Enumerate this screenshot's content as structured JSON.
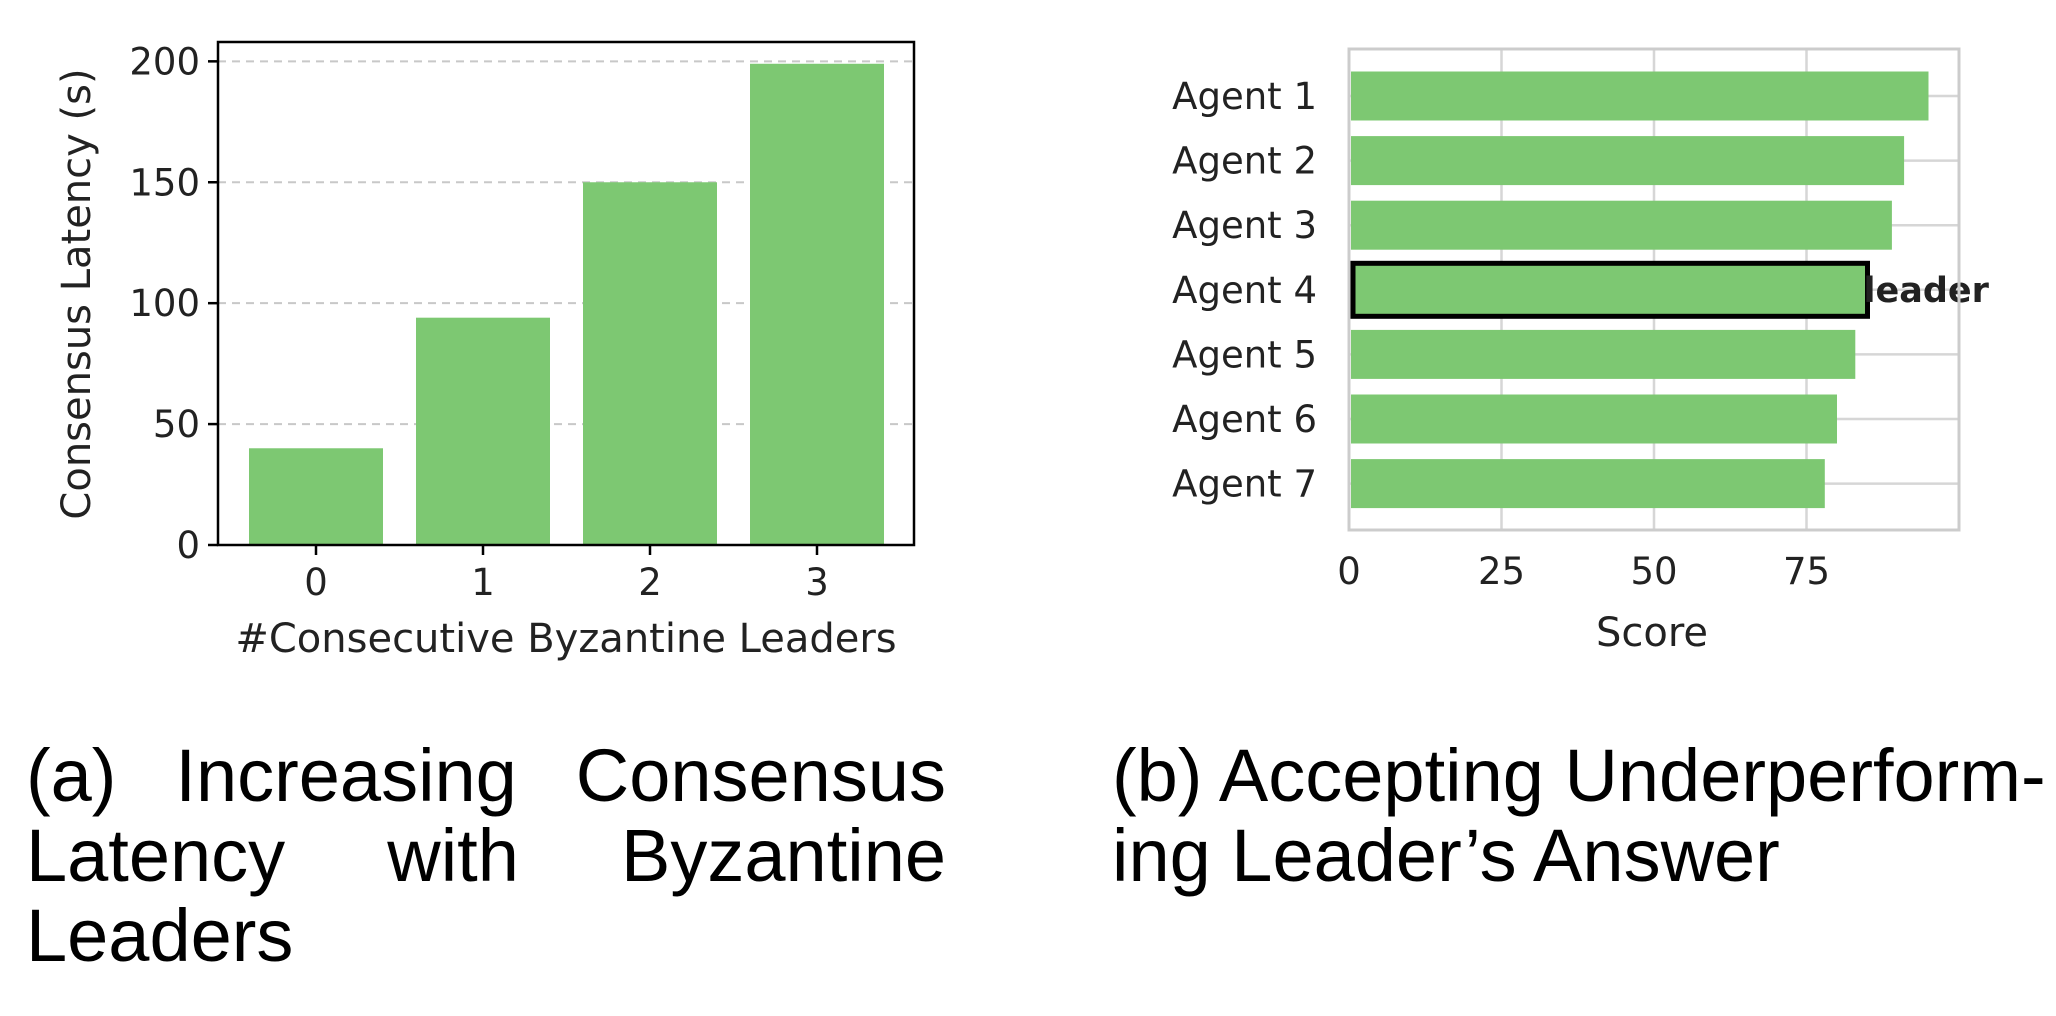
{
  "chart_data": [
    {
      "type": "bar",
      "categories": [
        "0",
        "1",
        "2",
        "3"
      ],
      "values": [
        40,
        94,
        150,
        199
      ],
      "xlabel": "#Consecutive Byzantine Leaders",
      "ylabel": "Consensus Latency (s)",
      "ylim": [
        0,
        208
      ],
      "yticks": [
        "0",
        "50",
        "100",
        "150",
        "200"
      ],
      "grid": "horizontal dashed",
      "color": "#7dc872",
      "caption": "(a) Increasing Consensus Latency with Byzantine Leaders"
    },
    {
      "type": "bar",
      "orientation": "horizontal",
      "categories": [
        "Agent 1",
        "Agent 2",
        "Agent 3",
        "Agent 4",
        "Agent 5",
        "Agent 6",
        "Agent 7"
      ],
      "values": [
        95,
        91,
        89,
        85,
        83,
        80,
        78
      ],
      "highlight": {
        "category": "Agent 4",
        "label": "leader"
      },
      "xlabel": "Score",
      "xlim": [
        0,
        100
      ],
      "xticks": [
        "0",
        "25",
        "50",
        "75"
      ],
      "grid": "both",
      "color": "#7dc872",
      "caption": "(b) Accepting Underperform-ing Leader’s Answer"
    }
  ]
}
